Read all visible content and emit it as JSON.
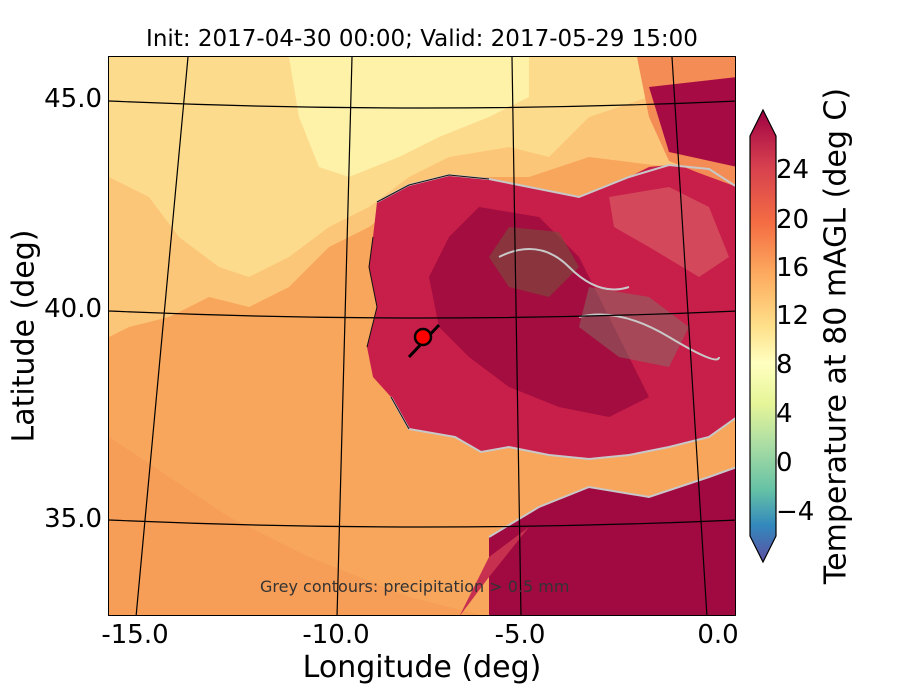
{
  "title": "Init: 2017-04-30 00:00; Valid: 2017-05-29 15:00",
  "x_axis": {
    "label": "Longitude (deg)",
    "ticks": [
      "-15.0",
      "-10.0",
      "-5.0",
      "0.0"
    ]
  },
  "y_axis": {
    "label": "Latitude (deg)",
    "ticks": [
      "45.0",
      "40.0",
      "35.0"
    ]
  },
  "colorbar": {
    "label": "Temperature at 80 mAGL (deg C)",
    "ticks": [
      "24",
      "20",
      "16",
      "12",
      "8",
      "4",
      "0",
      "−4"
    ],
    "range": [
      -7,
      28
    ]
  },
  "annotation": "Grey contours: precipitation > 0.5 mm",
  "marker": {
    "lon": -7.6,
    "lat": 39.4,
    "color": "#ff0000"
  },
  "colors": {
    "ocean_warm": "#f9b36a",
    "ocean_cool": "#fde9a2",
    "land_hot": "#a50a42",
    "land_mid": "#d93d4c"
  }
}
